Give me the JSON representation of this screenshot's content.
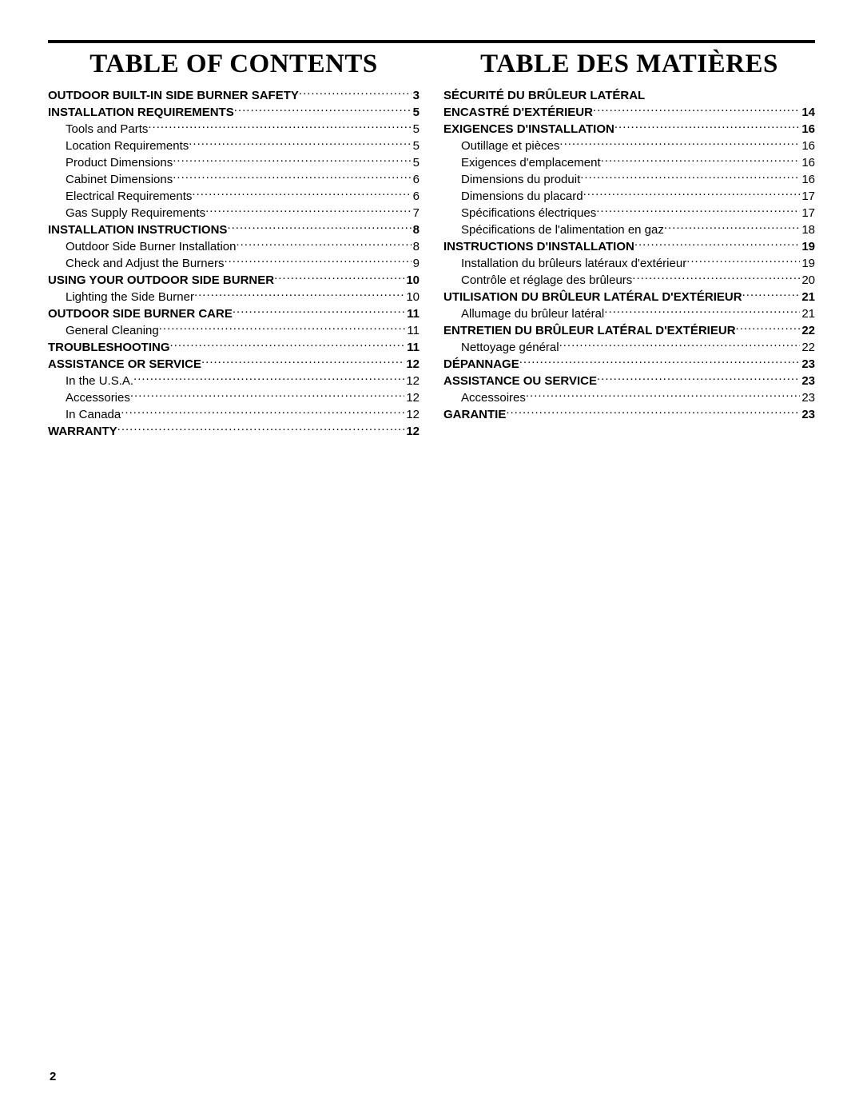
{
  "page_number": "2",
  "columns": [
    {
      "title": "TABLE OF CONTENTS",
      "entries": [
        {
          "label": "OUTDOOR BUILT-IN SIDE BURNER SAFETY",
          "page": "3",
          "bold": true,
          "sub": false
        },
        {
          "label": "INSTALLATION REQUIREMENTS",
          "page": "5",
          "bold": true,
          "sub": false
        },
        {
          "label": "Tools and Parts",
          "page": "5",
          "bold": false,
          "sub": true
        },
        {
          "label": "Location Requirements",
          "page": "5",
          "bold": false,
          "sub": true
        },
        {
          "label": "Product Dimensions",
          "page": "5",
          "bold": false,
          "sub": true
        },
        {
          "label": "Cabinet Dimensions",
          "page": "6",
          "bold": false,
          "sub": true
        },
        {
          "label": "Electrical Requirements",
          "page": "6",
          "bold": false,
          "sub": true
        },
        {
          "label": "Gas Supply Requirements",
          "page": "7",
          "bold": false,
          "sub": true
        },
        {
          "label": "INSTALLATION INSTRUCTIONS",
          "page": "8",
          "bold": true,
          "sub": false
        },
        {
          "label": "Outdoor Side Burner Installation",
          "page": "8",
          "bold": false,
          "sub": true
        },
        {
          "label": "Check and Adjust the Burners",
          "page": "9",
          "bold": false,
          "sub": true
        },
        {
          "label": "USING YOUR OUTDOOR SIDE BURNER",
          "page": "10",
          "bold": true,
          "sub": false
        },
        {
          "label": "Lighting the Side Burner",
          "page": "10",
          "bold": false,
          "sub": true
        },
        {
          "label": "OUTDOOR SIDE BURNER CARE",
          "page": "11",
          "bold": true,
          "sub": false
        },
        {
          "label": "General Cleaning",
          "page": "11",
          "bold": false,
          "sub": true
        },
        {
          "label": "TROUBLESHOOTING",
          "page": "11",
          "bold": true,
          "sub": false
        },
        {
          "label": "ASSISTANCE OR SERVICE",
          "page": "12",
          "bold": true,
          "sub": false
        },
        {
          "label": "In the U.S.A.",
          "page": "12",
          "bold": false,
          "sub": true
        },
        {
          "label": "Accessories",
          "page": "12",
          "bold": false,
          "sub": true
        },
        {
          "label": "In Canada",
          "page": "12",
          "bold": false,
          "sub": true
        },
        {
          "label": "WARRANTY",
          "page": "12",
          "bold": true,
          "sub": false
        }
      ]
    },
    {
      "title": "TABLE DES MATIÈRES",
      "entries": [
        {
          "label": "SÉCURITÉ DU BRÛLEUR LATÉRAL",
          "page": "",
          "bold": true,
          "sub": false,
          "nodots": true
        },
        {
          "label": "ENCASTRÉ D'EXTÉRIEUR",
          "page": "14",
          "bold": true,
          "sub": false
        },
        {
          "label": "EXIGENCES D'INSTALLATION",
          "page": "16",
          "bold": true,
          "sub": false
        },
        {
          "label": "Outillage et pièces",
          "page": "16",
          "bold": false,
          "sub": true
        },
        {
          "label": "Exigences d'emplacement",
          "page": "16",
          "bold": false,
          "sub": true
        },
        {
          "label": "Dimensions du produit",
          "page": "16",
          "bold": false,
          "sub": true
        },
        {
          "label": "Dimensions du placard",
          "page": "17",
          "bold": false,
          "sub": true
        },
        {
          "label": "Spécifications électriques",
          "page": "17",
          "bold": false,
          "sub": true
        },
        {
          "label": "Spécifications de l'alimentation en gaz",
          "page": "18",
          "bold": false,
          "sub": true
        },
        {
          "label": "INSTRUCTIONS D'INSTALLATION",
          "page": "19",
          "bold": true,
          "sub": false
        },
        {
          "label": "Installation du brûleurs latéraux d'extérieur",
          "page": "19",
          "bold": false,
          "sub": true
        },
        {
          "label": "Contrôle et réglage des brûleurs",
          "page": "20",
          "bold": false,
          "sub": true
        },
        {
          "label": "UTILISATION DU BRÛLEUR LATÉRAL D'EXTÉRIEUR",
          "page": "21",
          "bold": true,
          "sub": false
        },
        {
          "label": "Allumage du brûleur latéral",
          "page": "21",
          "bold": false,
          "sub": true
        },
        {
          "label": "ENTRETIEN DU BRÛLEUR LATÉRAL D'EXTÉRIEUR",
          "page": "22",
          "bold": true,
          "sub": false
        },
        {
          "label": "Nettoyage général",
          "page": "22",
          "bold": false,
          "sub": true
        },
        {
          "label": "DÉPANNAGE",
          "page": "23",
          "bold": true,
          "sub": false
        },
        {
          "label": "ASSISTANCE OU SERVICE",
          "page": "23",
          "bold": true,
          "sub": false
        },
        {
          "label": "Accessoires",
          "page": "23",
          "bold": false,
          "sub": true
        },
        {
          "label": "GARANTIE",
          "page": "23",
          "bold": true,
          "sub": false
        }
      ]
    }
  ]
}
